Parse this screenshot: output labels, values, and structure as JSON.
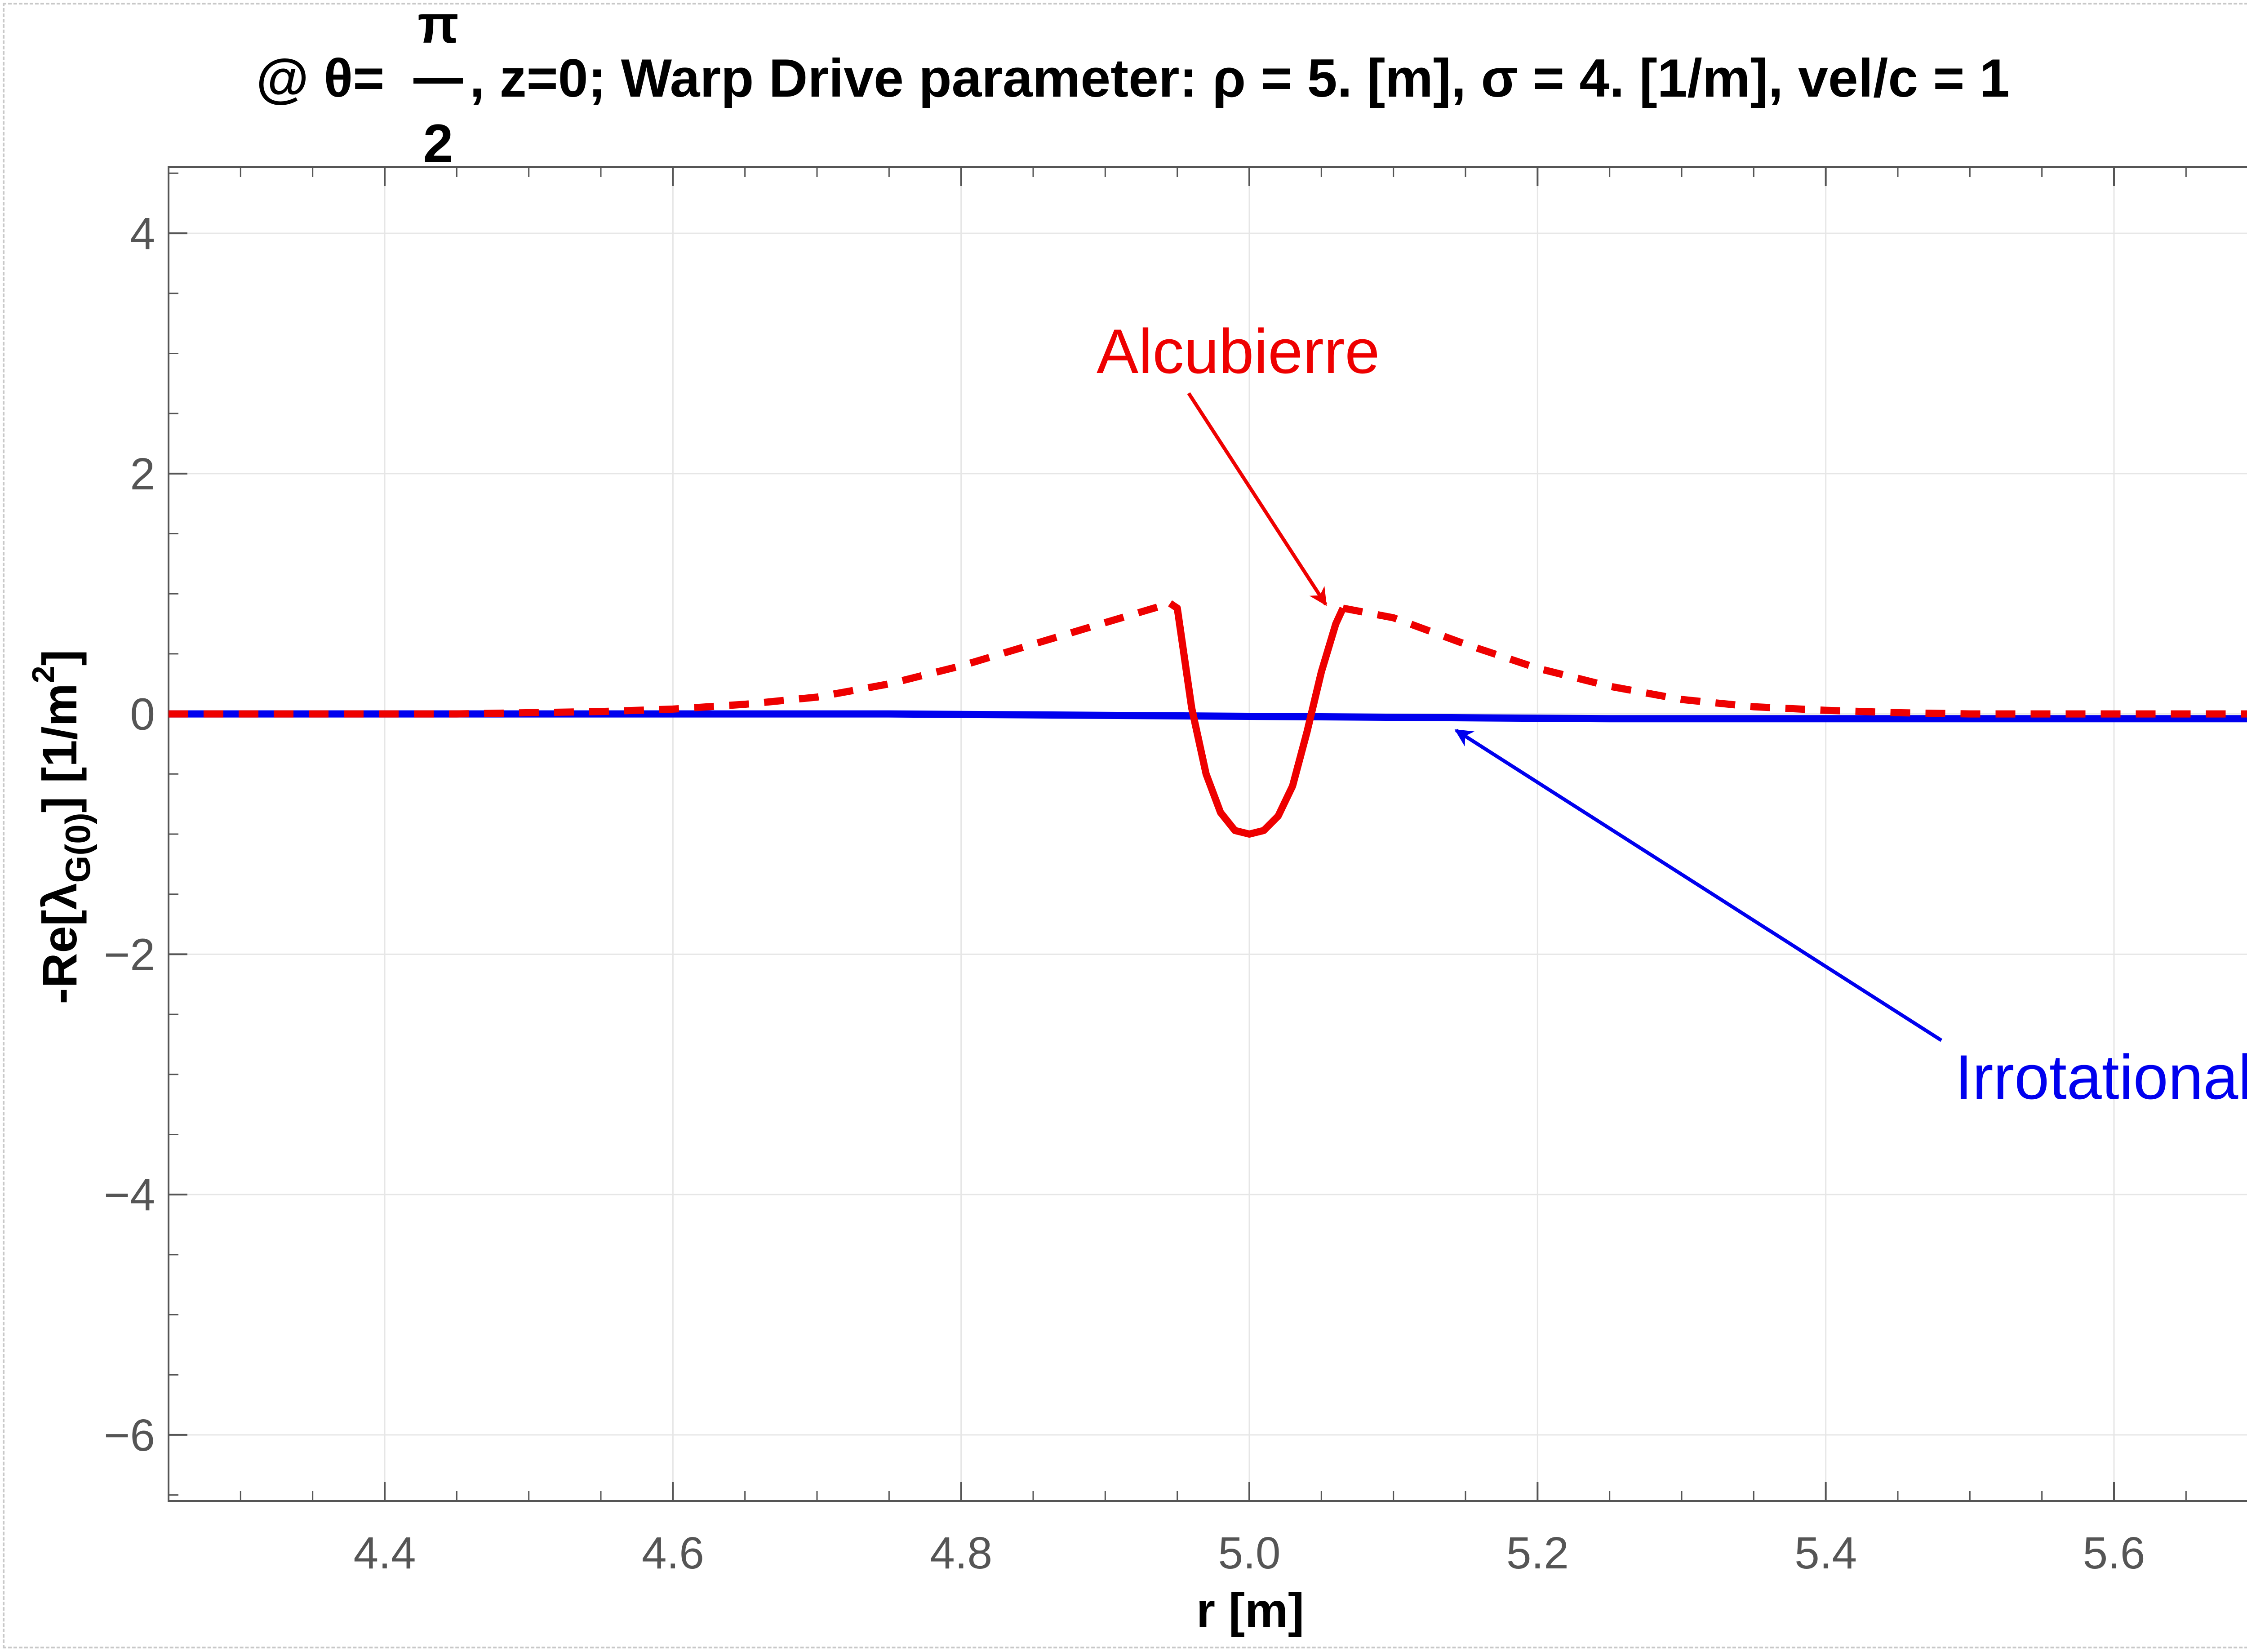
{
  "chart_data": {
    "type": "line",
    "title": {
      "prefix": "@ θ=",
      "frac_num": "π",
      "frac_den": "2",
      "suffix": ", z=0; Warp Drive parameter: ρ = 5. [m], σ = 4. [1/m], vel/c = 1"
    },
    "xlabel": "r [m]",
    "ylabel": {
      "main": "-Re[λ",
      "sub": "G(0)",
      "mid": "] [1/m",
      "sup": "2",
      "end": "]"
    },
    "xlim": [
      4.25,
      5.75
    ],
    "ylim": [
      -6.55,
      4.55
    ],
    "x_ticks": [
      4.4,
      4.6,
      4.8,
      5.0,
      5.2,
      5.4,
      5.6
    ],
    "x_tick_labels": [
      "4.4",
      "4.6",
      "4.8",
      "5.0",
      "5.2",
      "5.4",
      "5.6"
    ],
    "y_ticks": [
      4,
      2,
      0,
      -2,
      -4,
      -6
    ],
    "y_tick_labels": [
      "4",
      "2",
      "0",
      "−2",
      "−4",
      "−6"
    ],
    "grid": true,
    "series": [
      {
        "name": "Alcubierre",
        "color": "#ee0000",
        "style": "dashed-outside-solid-inside",
        "x": [
          4.25,
          4.3,
          4.35,
          4.4,
          4.45,
          4.5,
          4.55,
          4.6,
          4.65,
          4.7,
          4.75,
          4.8,
          4.85,
          4.9,
          4.945,
          4.95,
          4.96,
          4.97,
          4.98,
          4.99,
          5.0,
          5.01,
          5.02,
          5.03,
          5.04,
          5.05,
          5.06,
          5.065,
          5.1,
          5.15,
          5.2,
          5.25,
          5.3,
          5.35,
          5.4,
          5.45,
          5.5,
          5.55,
          5.6,
          5.65,
          5.7,
          5.75
        ],
        "y": [
          0.0,
          0.0,
          0.0,
          0.0,
          0.0,
          0.01,
          0.02,
          0.04,
          0.08,
          0.14,
          0.25,
          0.4,
          0.58,
          0.76,
          0.92,
          0.88,
          0.05,
          -0.5,
          -0.82,
          -0.97,
          -1.0,
          -0.97,
          -0.85,
          -0.6,
          -0.15,
          0.35,
          0.75,
          0.88,
          0.8,
          0.58,
          0.38,
          0.23,
          0.12,
          0.06,
          0.03,
          0.01,
          0.0,
          0.0,
          0.0,
          0.0,
          0.0,
          0.0
        ]
      },
      {
        "name": "Irrotational",
        "color": "#0000ee",
        "style": "solid",
        "x": [
          4.25,
          4.5,
          4.75,
          5.0,
          5.25,
          5.5,
          5.75
        ],
        "y": [
          0.0,
          0.0,
          0.0,
          -0.02,
          -0.04,
          -0.04,
          -0.04
        ]
      }
    ],
    "annotations": [
      {
        "text": "Alcubierre",
        "color": "#ee0000"
      },
      {
        "text": "Irrotational",
        "color": "#0000ee"
      }
    ]
  }
}
